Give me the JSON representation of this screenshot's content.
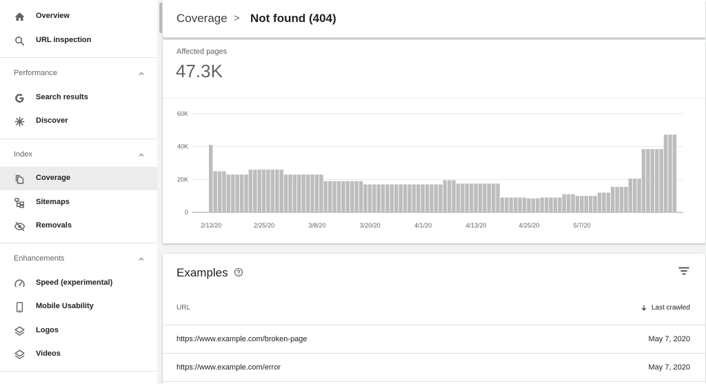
{
  "sidebar": {
    "top_items": [
      {
        "label": "Overview",
        "icon": "home-icon"
      },
      {
        "label": "URL inspection",
        "icon": "search-icon"
      }
    ],
    "sections": [
      {
        "title": "Performance",
        "items": [
          {
            "label": "Search results",
            "icon": "google-g-icon"
          },
          {
            "label": "Discover",
            "icon": "asterisk-icon"
          }
        ]
      },
      {
        "title": "Index",
        "items": [
          {
            "label": "Coverage",
            "icon": "copy-pages-icon",
            "active": true
          },
          {
            "label": "Sitemaps",
            "icon": "sitemap-icon"
          },
          {
            "label": "Removals",
            "icon": "eye-off-icon"
          }
        ]
      },
      {
        "title": "Enhancements",
        "items": [
          {
            "label": "Speed (experimental)",
            "icon": "speedometer-icon"
          },
          {
            "label": "Mobile Usability",
            "icon": "phone-icon"
          },
          {
            "label": "Logos",
            "icon": "layers-icon"
          },
          {
            "label": "Videos",
            "icon": "layers-icon"
          }
        ]
      }
    ]
  },
  "header": {
    "crumb_parent": "Coverage",
    "separator": ">",
    "crumb_current": "Not found (404)"
  },
  "summary": {
    "label": "Affected pages",
    "value": "47.3K"
  },
  "chart_data": {
    "type": "bar",
    "y_ticks": [
      "60K",
      "40K",
      "20K",
      "0"
    ],
    "ylim": [
      0,
      60000
    ],
    "x_ticks": [
      "2/13/20",
      "2/25/20",
      "3/8/20",
      "3/20/20",
      "4/1/20",
      "4/13/20",
      "4/25/20",
      "5/7/20"
    ],
    "start_date": "2020-02-13",
    "color": "#bdbdbd",
    "values": [
      41000,
      25000,
      25000,
      25000,
      23000,
      23000,
      23000,
      23000,
      23000,
      26000,
      26000,
      26000,
      26000,
      26000,
      26000,
      26000,
      26000,
      23000,
      23000,
      23000,
      23000,
      23000,
      23000,
      23000,
      23000,
      23000,
      19000,
      19000,
      19000,
      19000,
      19000,
      19000,
      19000,
      19000,
      19000,
      17000,
      17000,
      17000,
      17000,
      17000,
      17000,
      17000,
      17000,
      17000,
      17000,
      17000,
      17000,
      17000,
      17000,
      17000,
      17000,
      17000,
      17000,
      19500,
      19500,
      19500,
      17500,
      17500,
      17500,
      17500,
      17500,
      17500,
      17500,
      17500,
      17500,
      17500,
      9000,
      9000,
      9000,
      9000,
      9000,
      9000,
      8500,
      8500,
      8500,
      9000,
      9000,
      9000,
      9000,
      9000,
      11000,
      11000,
      11000,
      10000,
      10000,
      10000,
      10000,
      10000,
      12000,
      12000,
      12000,
      15500,
      15500,
      15500,
      15500,
      20500,
      20500,
      20500,
      38500,
      38500,
      38500,
      38500,
      38500,
      47300,
      47300,
      47300
    ]
  },
  "examples": {
    "title": "Examples",
    "col_url": "URL",
    "col_crawled": "Last crawled",
    "rows": [
      {
        "url": "https://www.example.com/broken-page",
        "date": "May 7, 2020"
      },
      {
        "url": "https://www.example.com/error",
        "date": "May 7, 2020"
      }
    ]
  }
}
